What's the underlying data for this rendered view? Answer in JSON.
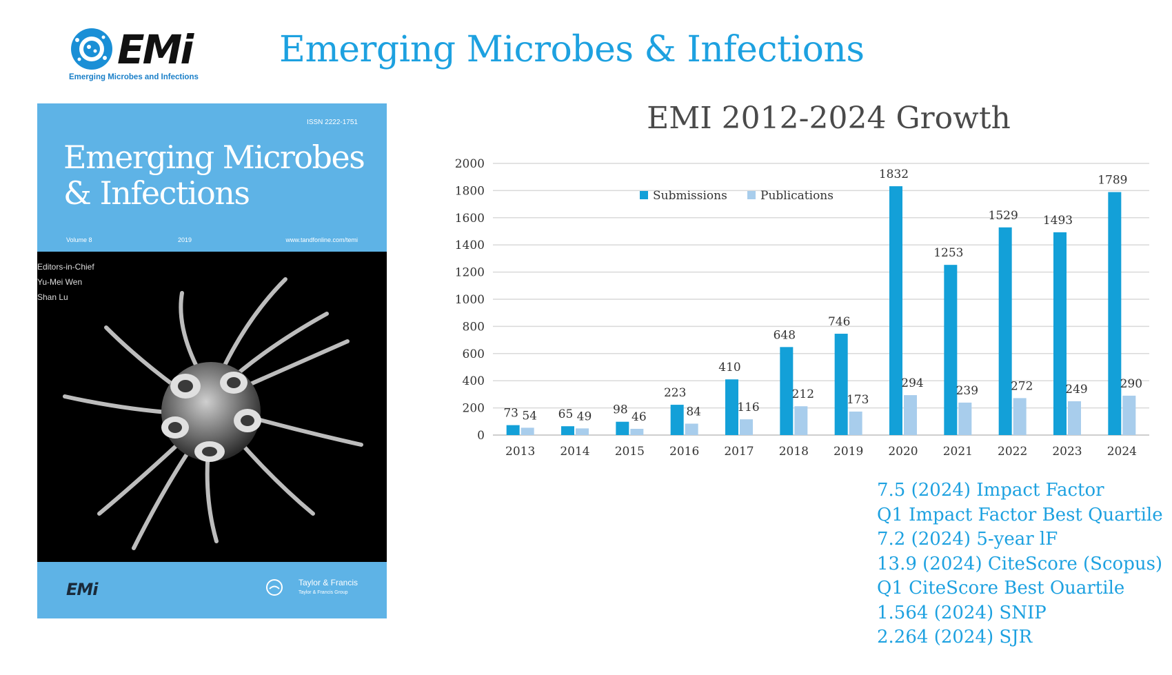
{
  "header": {
    "logo_mark": "EMi",
    "logo_subtitle": "Emerging Microbes and Infections",
    "title": "Emerging Microbes & Infections"
  },
  "cover": {
    "issn": "ISSN 2222-1751",
    "title": "Emerging Microbes & Infections",
    "volume": "Volume 8",
    "year": "2019",
    "url": "www.tandfonline.com/temi",
    "editors_label": "Editors-in-Chief",
    "editors": [
      "Yu-Mei Wen",
      "Shan Lu"
    ],
    "footer_logo": "EMi",
    "publisher": "Taylor & Francis",
    "publisher_group": "Taylor & Francis Group"
  },
  "chart_data": {
    "type": "bar",
    "title": "EMI 2012-2024 Growth",
    "categories": [
      "2013",
      "2014",
      "2015",
      "2016",
      "2017",
      "2018",
      "2019",
      "2020",
      "2021",
      "2022",
      "2023",
      "2024"
    ],
    "series": [
      {
        "name": "Submissions",
        "values": [
          73,
          65,
          98,
          223,
          410,
          648,
          746,
          1832,
          1253,
          1529,
          1493,
          1789
        ],
        "color": "#13a0d8"
      },
      {
        "name": "Publications",
        "values": [
          54,
          49,
          46,
          84,
          116,
          212,
          173,
          294,
          239,
          272,
          249,
          290
        ],
        "color": "#a8cdec"
      }
    ],
    "ylim": [
      0,
      2000
    ],
    "yticks": [
      0,
      200,
      400,
      600,
      800,
      1000,
      1200,
      1400,
      1600,
      1800,
      2000
    ],
    "grid": true,
    "legend": "top"
  },
  "metrics": [
    "7.5 (2024) Impact Factor",
    "Q1 Impact Factor Best Quartile",
    "7.2 (2024) 5-year lF",
    "13.9 (2024) CiteScore (Scopus)",
    "Q1 CiteScore Best Ouartile",
    "1.564 (2024) SNIP",
    "2.264 (2024) SJR"
  ],
  "colors": {
    "accent": "#1da1e0",
    "cover_blue": "#5eb3e6"
  }
}
